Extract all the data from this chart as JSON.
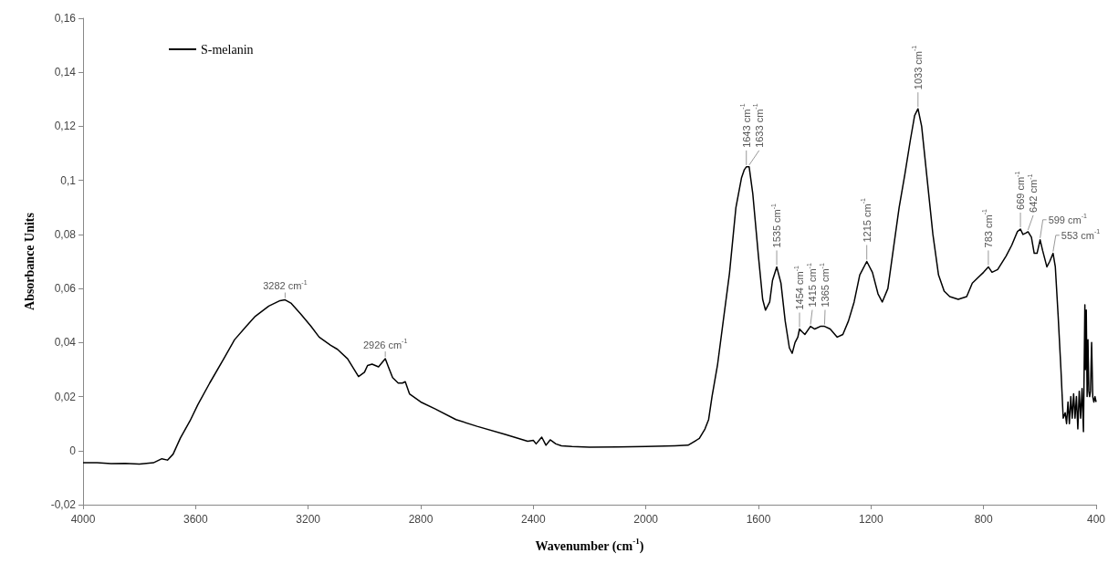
{
  "chart_data": {
    "type": "line",
    "xlabel": "Wavenumber (cm$^{-1}$)",
    "ylabel": "Absorbance Units",
    "xlim": [
      4000,
      400
    ],
    "xticks": [
      4000,
      3600,
      3200,
      2800,
      2400,
      2000,
      1600,
      1200,
      800,
      400
    ],
    "ylim": [
      -0.02,
      0.16
    ],
    "yticks": [
      {
        "value": -0.02,
        "label": "-0,02"
      },
      {
        "value": 0,
        "label": "0"
      },
      {
        "value": 0.02,
        "label": "0,02"
      },
      {
        "value": 0.04,
        "label": "0,04"
      },
      {
        "value": 0.06,
        "label": "0,06"
      },
      {
        "value": 0.08,
        "label": "0,08"
      },
      {
        "value": 0.1,
        "label": "0,1"
      },
      {
        "value": 0.12,
        "label": "0,12"
      },
      {
        "value": 0.14,
        "label": "0,14"
      },
      {
        "value": 0.16,
        "label": "0,16"
      }
    ],
    "grid": false,
    "legend": "top left",
    "marker": "none",
    "line_style": "solid",
    "x": [
      4000,
      3950,
      3900,
      3850,
      3800,
      3750,
      3720,
      3700,
      3680,
      3654,
      3620,
      3592,
      3550,
      3500,
      3462,
      3420,
      3388,
      3340,
      3300,
      3282,
      3260,
      3226,
      3190,
      3161,
      3120,
      3096,
      3060,
      3021,
      3000,
      2989,
      2973,
      2950,
      2926,
      2915,
      2900,
      2880,
      2865,
      2855,
      2840,
      2800,
      2750,
      2675,
      2600,
      2500,
      2420,
      2400,
      2390,
      2370,
      2355,
      2340,
      2320,
      2300,
      2263,
      2200,
      2100,
      2000,
      1897,
      1850,
      1810,
      1790,
      1777,
      1765,
      1745,
      1725,
      1703,
      1680,
      1660,
      1650,
      1643,
      1633,
      1620,
      1600,
      1585,
      1575,
      1560,
      1550,
      1535,
      1520,
      1505,
      1490,
      1480,
      1470,
      1460,
      1454,
      1445,
      1435,
      1415,
      1400,
      1380,
      1365,
      1345,
      1320,
      1300,
      1280,
      1260,
      1240,
      1215,
      1195,
      1175,
      1160,
      1140,
      1120,
      1100,
      1080,
      1060,
      1045,
      1033,
      1020,
      1000,
      980,
      960,
      940,
      920,
      890,
      860,
      840,
      820,
      800,
      783,
      770,
      750,
      720,
      700,
      680,
      669,
      660,
      650,
      642,
      630,
      620,
      610,
      599,
      590,
      575,
      565,
      553,
      545,
      535,
      525,
      517,
      510,
      505,
      500,
      495,
      490,
      485,
      480,
      475,
      470,
      465,
      460,
      455,
      450,
      445,
      440,
      438,
      435,
      432,
      429,
      426,
      423,
      420,
      416,
      412,
      408,
      404,
      400
    ],
    "series": [
      {
        "name": "S-melanin",
        "color": "#000000",
        "values": [
          -0.0045,
          -0.0045,
          -0.0048,
          -0.0047,
          -0.005,
          -0.0045,
          -0.003,
          -0.0035,
          -0.0013,
          0.0047,
          0.011,
          0.017,
          0.025,
          0.034,
          0.041,
          0.046,
          0.0497,
          0.0535,
          0.0555,
          0.0558,
          0.0545,
          0.0505,
          0.046,
          0.042,
          0.039,
          0.0375,
          0.034,
          0.0274,
          0.029,
          0.0315,
          0.032,
          0.031,
          0.034,
          0.031,
          0.027,
          0.025,
          0.025,
          0.0255,
          0.021,
          0.018,
          0.0155,
          0.0115,
          0.009,
          0.006,
          0.0035,
          0.0038,
          0.0025,
          0.005,
          0.002,
          0.004,
          0.0025,
          0.0018,
          0.0015,
          0.0013,
          0.0014,
          0.0015,
          0.0018,
          0.002,
          0.0045,
          0.008,
          0.0115,
          0.02,
          0.032,
          0.048,
          0.0655,
          0.09,
          0.101,
          0.104,
          0.105,
          0.105,
          0.095,
          0.072,
          0.056,
          0.052,
          0.055,
          0.063,
          0.068,
          0.062,
          0.048,
          0.038,
          0.036,
          0.04,
          0.042,
          0.045,
          0.044,
          0.043,
          0.046,
          0.045,
          0.046,
          0.046,
          0.045,
          0.042,
          0.043,
          0.048,
          0.055,
          0.065,
          0.07,
          0.066,
          0.058,
          0.055,
          0.06,
          0.075,
          0.09,
          0.102,
          0.115,
          0.124,
          0.1265,
          0.12,
          0.1,
          0.08,
          0.065,
          0.059,
          0.057,
          0.056,
          0.057,
          0.062,
          0.064,
          0.066,
          0.068,
          0.066,
          0.067,
          0.072,
          0.076,
          0.081,
          0.082,
          0.08,
          0.0805,
          0.081,
          0.079,
          0.073,
          0.073,
          0.078,
          0.074,
          0.068,
          0.07,
          0.073,
          0.068,
          0.05,
          0.03,
          0.012,
          0.014,
          0.01,
          0.018,
          0.01,
          0.02,
          0.012,
          0.021,
          0.012,
          0.02,
          0.008,
          0.022,
          0.012,
          0.023,
          0.007,
          0.054,
          0.03,
          0.052,
          0.02,
          0.041,
          0.022,
          0.02,
          0.022,
          0.04,
          0.02,
          0.018,
          0.02,
          0.018
        ]
      }
    ],
    "annotations": [
      {
        "text": "3282 cm$^{-1}$",
        "x": 3282,
        "y": 0.0558
      },
      {
        "text": "2926 cm$^{-1}$",
        "x": 2926,
        "y": 0.034
      },
      {
        "text": "1643 cm$^{-1}$",
        "x": 1643,
        "y": 0.105
      },
      {
        "text": "1633 cm$^{-1}$",
        "x": 1633,
        "y": 0.105
      },
      {
        "text": "1535 cm$^{-1}$",
        "x": 1535,
        "y": 0.068
      },
      {
        "text": "1454 cm$^{-1}$",
        "x": 1454,
        "y": 0.045
      },
      {
        "text": "1415 cm$^{-1}$",
        "x": 1415,
        "y": 0.046
      },
      {
        "text": "1365 cm$^{-1}$",
        "x": 1365,
        "y": 0.046
      },
      {
        "text": "1215 cm$^{-1}$",
        "x": 1215,
        "y": 0.07
      },
      {
        "text": "1033 cm$^{-1}$",
        "x": 1033,
        "y": 0.1265
      },
      {
        "text": "783 cm$^{-1}$",
        "x": 783,
        "y": 0.068
      },
      {
        "text": "669 cm$^{-1}$",
        "x": 669,
        "y": 0.082
      },
      {
        "text": "642 cm$^{-1}$",
        "x": 642,
        "y": 0.081
      },
      {
        "text": "599 cm$^{-1}$",
        "x": 599,
        "y": 0.078
      },
      {
        "text": "553 cm$^{-1}$",
        "x": 553,
        "y": 0.073
      }
    ]
  }
}
